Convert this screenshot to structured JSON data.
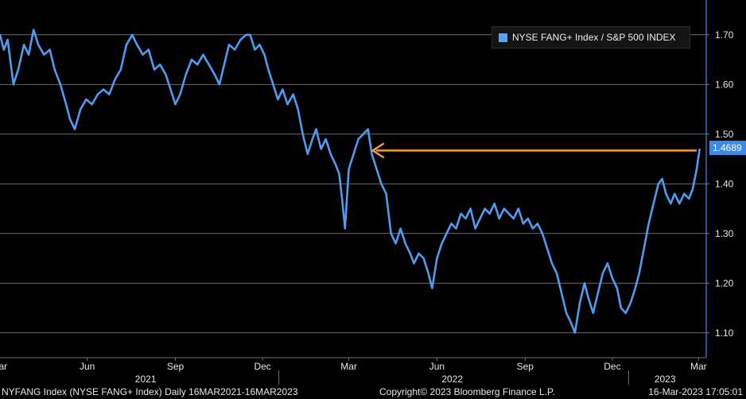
{
  "chart_data": {
    "type": "line",
    "legend_position": "top-right",
    "grid": true,
    "y_axis_side": "right",
    "ylim": [
      1.05,
      1.77
    ],
    "yticks": [
      1.1,
      1.2,
      1.3,
      1.4,
      1.5,
      1.6,
      1.7
    ],
    "ytick_labels": [
      "1.10",
      "1.20",
      "1.30",
      "1.40",
      "1.50",
      "1.60",
      "1.70"
    ],
    "xlim": [
      "2021-03-16",
      "2023-03-23"
    ],
    "month_ticks": [
      {
        "label": "Mar",
        "date": "2021-03-15"
      },
      {
        "label": "Jun",
        "date": "2021-06-15"
      },
      {
        "label": "Sep",
        "date": "2021-09-15"
      },
      {
        "label": "Dec",
        "date": "2021-12-15"
      },
      {
        "label": "Mar",
        "date": "2022-03-15"
      },
      {
        "label": "Jun",
        "date": "2022-06-15"
      },
      {
        "label": "Sep",
        "date": "2022-09-15"
      },
      {
        "label": "Dec",
        "date": "2022-12-15"
      },
      {
        "label": "Mar",
        "date": "2023-03-15"
      }
    ],
    "year_labels": [
      {
        "label": "2021",
        "date": "2021-08-15"
      },
      {
        "label": "2022",
        "date": "2022-07-01"
      },
      {
        "label": "2023",
        "date": "2023-02-08"
      }
    ],
    "year_separators": [
      "2022-01-01",
      "2023-01-01"
    ],
    "series": [
      {
        "name": "NYSE FANG+ Index / S&P 500 INDEX",
        "color": "#4f9bf0",
        "last_value": "1.4689",
        "points": [
          [
            "2021-03-16",
            1.7
          ],
          [
            "2021-03-20",
            1.67
          ],
          [
            "2021-03-24",
            1.69
          ],
          [
            "2021-03-30",
            1.6
          ],
          [
            "2021-04-04",
            1.63
          ],
          [
            "2021-04-10",
            1.68
          ],
          [
            "2021-04-15",
            1.66
          ],
          [
            "2021-04-20",
            1.71
          ],
          [
            "2021-04-25",
            1.68
          ],
          [
            "2021-05-01",
            1.66
          ],
          [
            "2021-05-07",
            1.67
          ],
          [
            "2021-05-12",
            1.63
          ],
          [
            "2021-05-18",
            1.6
          ],
          [
            "2021-05-24",
            1.56
          ],
          [
            "2021-05-28",
            1.53
          ],
          [
            "2021-06-02",
            1.51
          ],
          [
            "2021-06-08",
            1.55
          ],
          [
            "2021-06-14",
            1.57
          ],
          [
            "2021-06-20",
            1.56
          ],
          [
            "2021-06-26",
            1.58
          ],
          [
            "2021-07-02",
            1.59
          ],
          [
            "2021-07-08",
            1.58
          ],
          [
            "2021-07-14",
            1.61
          ],
          [
            "2021-07-20",
            1.63
          ],
          [
            "2021-07-26",
            1.68
          ],
          [
            "2021-08-01",
            1.7
          ],
          [
            "2021-08-06",
            1.68
          ],
          [
            "2021-08-12",
            1.66
          ],
          [
            "2021-08-18",
            1.67
          ],
          [
            "2021-08-24",
            1.63
          ],
          [
            "2021-08-30",
            1.64
          ],
          [
            "2021-09-05",
            1.62
          ],
          [
            "2021-09-10",
            1.59
          ],
          [
            "2021-09-15",
            1.56
          ],
          [
            "2021-09-20",
            1.58
          ],
          [
            "2021-09-26",
            1.62
          ],
          [
            "2021-10-02",
            1.65
          ],
          [
            "2021-10-08",
            1.64
          ],
          [
            "2021-10-14",
            1.66
          ],
          [
            "2021-10-20",
            1.64
          ],
          [
            "2021-10-26",
            1.62
          ],
          [
            "2021-10-31",
            1.6
          ],
          [
            "2021-11-05",
            1.64
          ],
          [
            "2021-11-10",
            1.68
          ],
          [
            "2021-11-16",
            1.67
          ],
          [
            "2021-11-22",
            1.69
          ],
          [
            "2021-11-28",
            1.7
          ],
          [
            "2021-12-02",
            1.7
          ],
          [
            "2021-12-07",
            1.67
          ],
          [
            "2021-12-12",
            1.68
          ],
          [
            "2021-12-17",
            1.66
          ],
          [
            "2021-12-21",
            1.63
          ],
          [
            "2021-12-26",
            1.6
          ],
          [
            "2021-12-31",
            1.57
          ],
          [
            "2022-01-05",
            1.59
          ],
          [
            "2022-01-10",
            1.56
          ],
          [
            "2022-01-16",
            1.58
          ],
          [
            "2022-01-21",
            1.55
          ],
          [
            "2022-01-26",
            1.5
          ],
          [
            "2022-01-31",
            1.46
          ],
          [
            "2022-02-05",
            1.49
          ],
          [
            "2022-02-09",
            1.51
          ],
          [
            "2022-02-14",
            1.47
          ],
          [
            "2022-02-19",
            1.49
          ],
          [
            "2022-02-24",
            1.46
          ],
          [
            "2022-03-01",
            1.44
          ],
          [
            "2022-03-05",
            1.42
          ],
          [
            "2022-03-08",
            1.37
          ],
          [
            "2022-03-11",
            1.31
          ],
          [
            "2022-03-15",
            1.43
          ],
          [
            "2022-03-20",
            1.46
          ],
          [
            "2022-03-25",
            1.49
          ],
          [
            "2022-03-30",
            1.5
          ],
          [
            "2022-04-04",
            1.51
          ],
          [
            "2022-04-08",
            1.46
          ],
          [
            "2022-04-13",
            1.43
          ],
          [
            "2022-04-18",
            1.4
          ],
          [
            "2022-04-23",
            1.38
          ],
          [
            "2022-04-28",
            1.3
          ],
          [
            "2022-05-03",
            1.28
          ],
          [
            "2022-05-08",
            1.31
          ],
          [
            "2022-05-13",
            1.28
          ],
          [
            "2022-05-18",
            1.26
          ],
          [
            "2022-05-22",
            1.24
          ],
          [
            "2022-05-27",
            1.26
          ],
          [
            "2022-06-01",
            1.25
          ],
          [
            "2022-06-06",
            1.22
          ],
          [
            "2022-06-10",
            1.19
          ],
          [
            "2022-06-15",
            1.25
          ],
          [
            "2022-06-20",
            1.28
          ],
          [
            "2022-06-25",
            1.3
          ],
          [
            "2022-06-30",
            1.32
          ],
          [
            "2022-07-05",
            1.31
          ],
          [
            "2022-07-10",
            1.34
          ],
          [
            "2022-07-15",
            1.33
          ],
          [
            "2022-07-20",
            1.35
          ],
          [
            "2022-07-25",
            1.31
          ],
          [
            "2022-07-30",
            1.33
          ],
          [
            "2022-08-04",
            1.35
          ],
          [
            "2022-08-09",
            1.34
          ],
          [
            "2022-08-14",
            1.36
          ],
          [
            "2022-08-19",
            1.33
          ],
          [
            "2022-08-24",
            1.35
          ],
          [
            "2022-08-29",
            1.34
          ],
          [
            "2022-09-03",
            1.33
          ],
          [
            "2022-09-08",
            1.35
          ],
          [
            "2022-09-13",
            1.32
          ],
          [
            "2022-09-18",
            1.33
          ],
          [
            "2022-09-23",
            1.31
          ],
          [
            "2022-09-28",
            1.32
          ],
          [
            "2022-10-03",
            1.3
          ],
          [
            "2022-10-08",
            1.27
          ],
          [
            "2022-10-13",
            1.24
          ],
          [
            "2022-10-18",
            1.22
          ],
          [
            "2022-10-23",
            1.18
          ],
          [
            "2022-10-28",
            1.14
          ],
          [
            "2022-11-02",
            1.12
          ],
          [
            "2022-11-06",
            1.1
          ],
          [
            "2022-11-11",
            1.16
          ],
          [
            "2022-11-16",
            1.2
          ],
          [
            "2022-11-20",
            1.17
          ],
          [
            "2022-11-25",
            1.14
          ],
          [
            "2022-11-30",
            1.18
          ],
          [
            "2022-12-05",
            1.22
          ],
          [
            "2022-12-10",
            1.24
          ],
          [
            "2022-12-15",
            1.21
          ],
          [
            "2022-12-20",
            1.19
          ],
          [
            "2022-12-24",
            1.15
          ],
          [
            "2022-12-29",
            1.14
          ],
          [
            "2023-01-03",
            1.16
          ],
          [
            "2023-01-08",
            1.19
          ],
          [
            "2023-01-12",
            1.22
          ],
          [
            "2023-01-17",
            1.27
          ],
          [
            "2023-01-22",
            1.32
          ],
          [
            "2023-01-27",
            1.36
          ],
          [
            "2023-02-01",
            1.4
          ],
          [
            "2023-02-05",
            1.41
          ],
          [
            "2023-02-09",
            1.38
          ],
          [
            "2023-02-14",
            1.36
          ],
          [
            "2023-02-18",
            1.38
          ],
          [
            "2023-02-23",
            1.36
          ],
          [
            "2023-02-28",
            1.38
          ],
          [
            "2023-03-05",
            1.37
          ],
          [
            "2023-03-09",
            1.39
          ],
          [
            "2023-03-13",
            1.43
          ],
          [
            "2023-03-16",
            1.4689
          ]
        ]
      }
    ],
    "annotations": [
      {
        "type": "arrow",
        "color": "#f29c38",
        "from": [
          "2023-03-13",
          1.467
        ],
        "to": [
          "2022-04-09",
          1.467
        ]
      }
    ]
  },
  "legend": {
    "label": "NYSE FANG+ Index / S&P 500 INDEX",
    "color": "#4f9bf0"
  },
  "last_value_badge": "1.4689",
  "footer": {
    "left": "NYFANG Index (NYSE FANG+ Index)  Daily 16MAR2021-16MAR2023",
    "center": "Copyright© 2023 Bloomberg Finance L.P.",
    "right": "16-Mar-2023 17:05:01"
  }
}
